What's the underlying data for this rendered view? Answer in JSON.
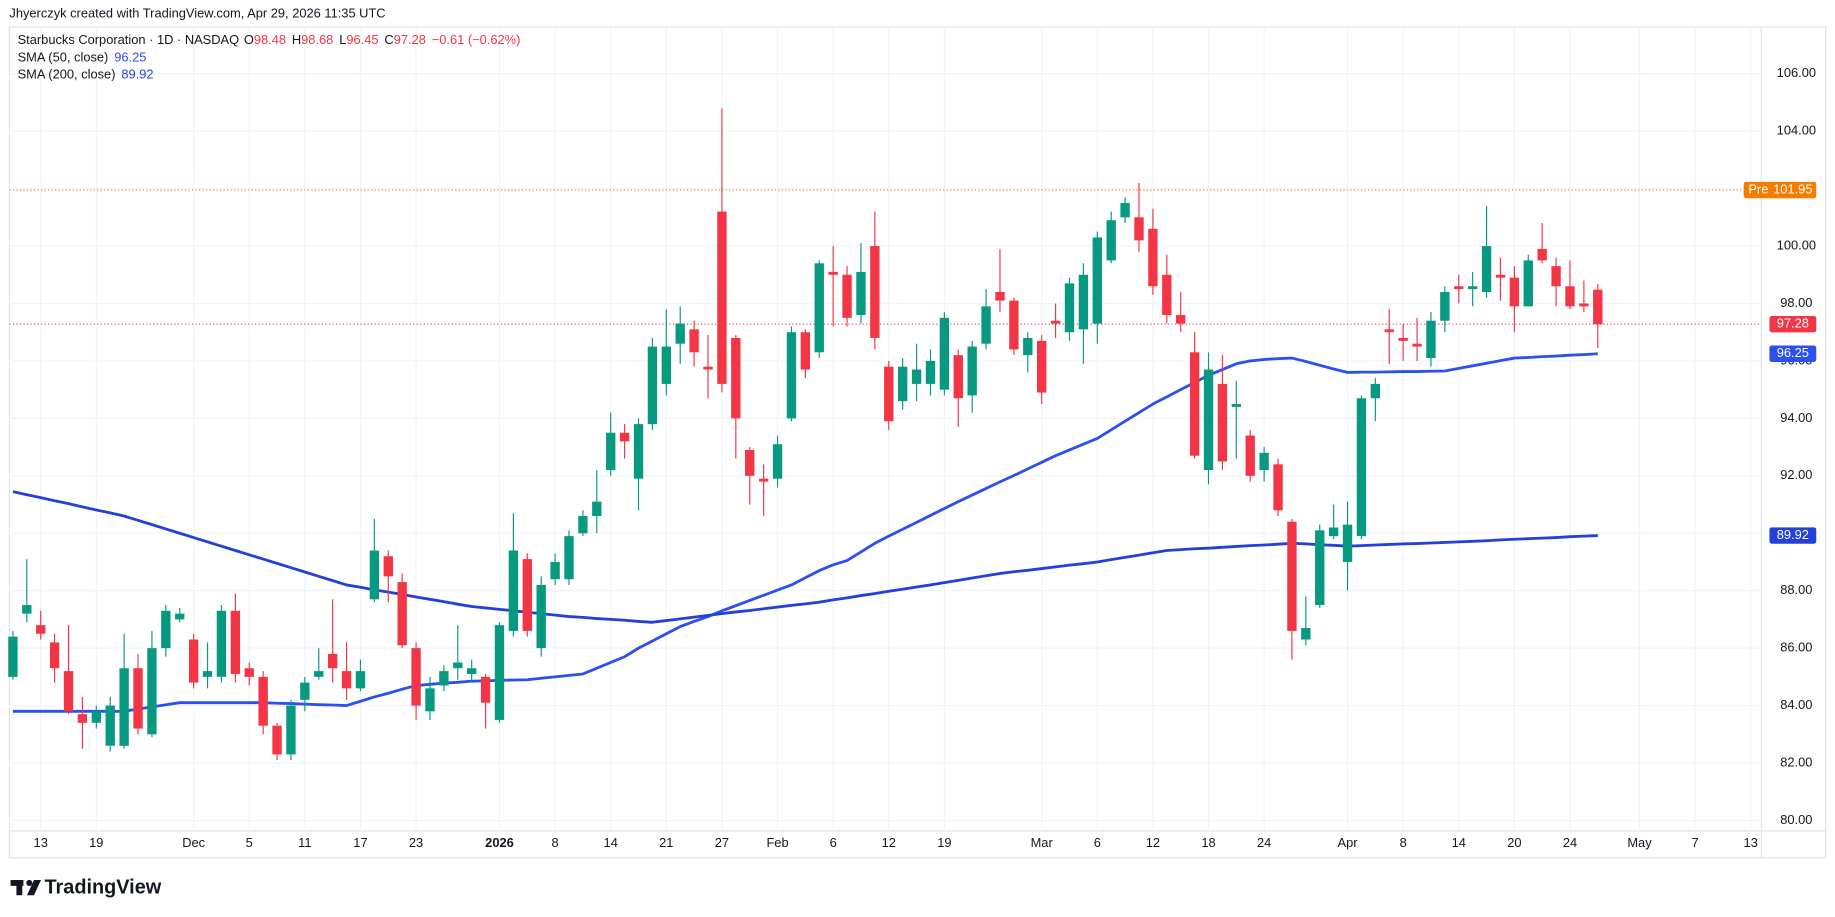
{
  "credit": "Jhyerczyk created with TradingView.com, Apr 29, 2026 11:35 UTC",
  "logo": "TradingView",
  "chart_data": {
    "type": "candlestick",
    "title": "Starbucks Corporation · 1D · NASDAQ",
    "ohlc_labels": [
      "O",
      "H",
      "L",
      "C"
    ],
    "change": "−0.61 (−0.62%)",
    "up_color": "#089981",
    "down_color": "#f23645",
    "categories": [
      null,
      null,
      "13",
      null,
      null,
      null,
      "19",
      null,
      null,
      null,
      null,
      null,
      null,
      "Dec",
      null,
      null,
      null,
      "5",
      null,
      null,
      null,
      "11",
      null,
      null,
      null,
      "17",
      null,
      null,
      null,
      "23",
      null,
      null,
      null,
      null,
      null,
      "2026",
      null,
      null,
      null,
      "8",
      null,
      null,
      null,
      "14",
      null,
      null,
      null,
      "21",
      null,
      null,
      null,
      "27",
      null,
      null,
      null,
      "Feb",
      null,
      null,
      null,
      "6",
      null,
      null,
      null,
      "12",
      null,
      null,
      null,
      "19",
      null,
      null,
      null,
      null,
      null,
      null,
      "Mar",
      null,
      null,
      null,
      "6",
      null,
      null,
      null,
      "12",
      null,
      null,
      null,
      "18",
      null,
      null,
      null,
      "24",
      null,
      null,
      null,
      null,
      null,
      "Apr",
      null,
      null,
      null,
      "8",
      null,
      null,
      null,
      "14",
      null,
      null,
      null,
      "20",
      null,
      null,
      null,
      "24",
      null,
      null,
      null,
      null,
      "May",
      null,
      null,
      null,
      "7",
      null,
      null,
      null,
      "13"
    ],
    "open": [
      85.0,
      87.2,
      86.8,
      86.2,
      85.2,
      83.7,
      83.4,
      82.6,
      82.6,
      85.3,
      83.0,
      86.0,
      87.0,
      86.3,
      85.0,
      85.0,
      87.3,
      85.3,
      85.0,
      83.3,
      82.3,
      84.2,
      85.0,
      85.8,
      85.2,
      84.6,
      87.7,
      89.2,
      88.3,
      86.0,
      83.8,
      84.7,
      85.3,
      85.1,
      85.0,
      83.5,
      86.6,
      89.1,
      86.0,
      88.4,
      88.4,
      90.0,
      90.6,
      92.2,
      93.5,
      91.9,
      93.8,
      95.2,
      96.6,
      97.1,
      95.8,
      101.2,
      96.8,
      92.9,
      91.9,
      91.9,
      94.0,
      97.0,
      96.3,
      99.1,
      99.0,
      97.6,
      100.0,
      95.8,
      94.6,
      95.2,
      95.2,
      95.0,
      96.2,
      94.8,
      96.6,
      98.4,
      98.1,
      96.2,
      96.7,
      97.4,
      97.0,
      97.1,
      97.3,
      99.5,
      101.0,
      101.0,
      100.6,
      99.0,
      97.6,
      96.3,
      92.2,
      95.2,
      94.4,
      93.4,
      92.2,
      92.4,
      90.4,
      86.3,
      87.5,
      89.9,
      89.0,
      89.9,
      94.7,
      97.1,
      96.8,
      96.6,
      96.1,
      97.4,
      98.6,
      98.5,
      98.4,
      99.0,
      98.9,
      97.9,
      99.9,
      99.3,
      98.6,
      98.0,
      98.48,
      null,
      null,
      null,
      null,
      null,
      null,
      null,
      null,
      null,
      null,
      null
    ],
    "high": [
      86.6,
      89.1,
      87.3,
      86.5,
      86.8,
      84.3,
      84.0,
      84.3,
      86.5,
      85.8,
      86.6,
      87.5,
      87.4,
      86.5,
      86.2,
      87.5,
      87.9,
      85.5,
      85.2,
      83.4,
      84.2,
      85.0,
      86.0,
      87.7,
      86.2,
      85.6,
      90.5,
      89.4,
      88.6,
      86.2,
      85.0,
      85.4,
      86.8,
      85.6,
      85.1,
      86.9,
      90.7,
      89.3,
      88.5,
      89.3,
      90.1,
      90.8,
      92.2,
      94.2,
      93.8,
      94.0,
      96.8,
      97.8,
      97.9,
      97.4,
      96.9,
      104.8,
      96.9,
      93.0,
      92.4,
      93.4,
      97.2,
      97.1,
      99.5,
      100.0,
      99.3,
      100.1,
      101.2,
      96.0,
      96.1,
      96.6,
      96.4,
      97.7,
      96.4,
      96.7,
      98.5,
      99.9,
      98.2,
      97.0,
      96.9,
      98.0,
      98.9,
      99.4,
      100.5,
      101.2,
      101.7,
      102.2,
      101.3,
      99.7,
      98.4,
      97.0,
      96.3,
      96.2,
      95.3,
      93.6,
      93.0,
      92.6,
      90.5,
      87.8,
      90.3,
      91.0,
      91.1,
      94.8,
      95.4,
      97.8,
      97.3,
      97.5,
      97.7,
      98.6,
      99.0,
      99.1,
      101.4,
      99.6,
      99.3,
      99.7,
      100.8,
      99.6,
      99.5,
      98.8,
      98.68,
      null,
      null,
      null,
      null,
      null,
      null,
      null,
      null,
      null,
      null,
      null
    ],
    "low": [
      84.9,
      86.9,
      86.3,
      84.8,
      83.7,
      82.5,
      83.2,
      82.4,
      82.5,
      83.0,
      82.9,
      85.7,
      86.9,
      84.6,
      84.6,
      84.8,
      84.8,
      84.7,
      83.0,
      82.1,
      82.1,
      83.8,
      84.9,
      84.8,
      84.2,
      84.5,
      87.6,
      87.6,
      86.0,
      83.5,
      83.5,
      84.5,
      84.9,
      84.8,
      83.2,
      83.4,
      86.4,
      86.4,
      85.7,
      88.2,
      88.2,
      89.9,
      90.0,
      92.0,
      92.6,
      90.8,
      93.6,
      94.8,
      95.9,
      95.8,
      94.7,
      94.9,
      92.6,
      91.0,
      90.6,
      91.6,
      93.9,
      95.4,
      96.1,
      97.2,
      97.2,
      97.3,
      96.4,
      93.6,
      94.3,
      94.6,
      94.8,
      94.8,
      93.7,
      94.2,
      96.4,
      97.7,
      96.2,
      95.6,
      94.5,
      96.8,
      96.7,
      95.9,
      96.6,
      99.4,
      100.8,
      99.8,
      98.3,
      97.3,
      97.0,
      92.6,
      91.7,
      92.2,
      92.6,
      91.8,
      91.8,
      90.6,
      85.6,
      86.1,
      87.4,
      89.8,
      88.0,
      89.8,
      93.9,
      95.9,
      96.0,
      96.0,
      95.8,
      97.0,
      98.0,
      97.9,
      98.2,
      98.1,
      97.0,
      97.9,
      99.4,
      97.9,
      97.8,
      97.7,
      96.45,
      null,
      null,
      null,
      null,
      null,
      null,
      null,
      null,
      null,
      null,
      null
    ],
    "close": [
      86.4,
      87.5,
      86.5,
      85.3,
      83.8,
      83.4,
      83.8,
      84.0,
      85.3,
      83.2,
      86.0,
      87.3,
      87.2,
      84.8,
      85.2,
      87.3,
      85.1,
      85.0,
      83.3,
      82.3,
      84.0,
      84.8,
      85.2,
      85.3,
      84.6,
      85.2,
      89.4,
      88.5,
      86.1,
      84.0,
      84.6,
      85.2,
      85.5,
      85.3,
      84.1,
      86.8,
      89.4,
      86.6,
      88.2,
      89.0,
      89.9,
      90.6,
      91.1,
      93.5,
      93.2,
      93.8,
      96.5,
      96.5,
      97.3,
      96.3,
      95.7,
      95.2,
      94.0,
      92.0,
      91.8,
      93.1,
      97.0,
      95.7,
      99.4,
      99.0,
      97.5,
      99.1,
      96.8,
      93.9,
      95.8,
      95.7,
      96.0,
      97.5,
      94.7,
      96.5,
      97.9,
      98.1,
      96.4,
      96.8,
      94.9,
      97.3,
      98.7,
      99.0,
      100.3,
      100.9,
      101.5,
      100.2,
      98.6,
      97.6,
      97.3,
      92.7,
      95.7,
      92.5,
      94.5,
      92.0,
      92.8,
      90.8,
      86.6,
      86.7,
      90.1,
      90.2,
      90.3,
      94.7,
      95.2,
      97.0,
      96.7,
      96.5,
      97.4,
      98.4,
      98.5,
      98.6,
      100.0,
      98.9,
      97.9,
      99.5,
      99.5,
      98.6,
      97.9,
      97.9,
      97.28,
      null,
      null,
      null,
      null,
      null,
      null,
      null,
      null,
      null,
      null,
      null
    ],
    "series": [
      {
        "name": "SMA (50, close)",
        "color": "#2b4ff0",
        "values": [
          83.8,
          83.8,
          83.8,
          83.8,
          83.8,
          83.8,
          83.8,
          83.8,
          83.8,
          83.88,
          83.95,
          84.03,
          84.1,
          84.1,
          84.1,
          84.1,
          84.1,
          84.1,
          84.1,
          84.08,
          84.07,
          84.05,
          84.03,
          84.02,
          84.0,
          84.15,
          84.3,
          84.43,
          84.57,
          84.7,
          84.74,
          84.78,
          84.81,
          84.85,
          84.86,
          84.88,
          84.89,
          84.9,
          84.95,
          85.0,
          85.05,
          85.1,
          85.3,
          85.5,
          85.7,
          86.0,
          86.25,
          86.5,
          86.75,
          86.93,
          87.1,
          87.3,
          87.48,
          87.66,
          87.84,
          88.02,
          88.2,
          88.45,
          88.7,
          88.9,
          89.05,
          89.35,
          89.65,
          89.9,
          90.14,
          90.38,
          90.62,
          90.86,
          91.1,
          91.33,
          91.56,
          91.79,
          92.01,
          92.24,
          92.47,
          92.7,
          92.9,
          93.1,
          93.3,
          93.6,
          93.9,
          94.2,
          94.5,
          94.75,
          95.0,
          95.25,
          95.5,
          95.7,
          95.9,
          96.0,
          96.05,
          96.08,
          96.1,
          95.98,
          95.85,
          95.72,
          95.6,
          95.61,
          95.61,
          95.62,
          95.63,
          95.63,
          95.64,
          95.65,
          95.74,
          95.83,
          95.92,
          96.01,
          96.1,
          96.12,
          96.15,
          96.17,
          96.2,
          96.22,
          96.25,
          null,
          null,
          null,
          null,
          null,
          null,
          null,
          null,
          null,
          null,
          null
        ]
      },
      {
        "name": "SMA (200, close)",
        "color": "#2440d8",
        "values": [
          91.45,
          91.34,
          91.24,
          91.13,
          91.03,
          90.92,
          90.81,
          90.71,
          90.6,
          90.45,
          90.3,
          90.15,
          90.0,
          89.85,
          89.7,
          89.55,
          89.4,
          89.25,
          89.1,
          88.95,
          88.8,
          88.65,
          88.5,
          88.35,
          88.2,
          88.12,
          88.03,
          87.95,
          87.87,
          87.78,
          87.7,
          87.62,
          87.53,
          87.45,
          87.4,
          87.35,
          87.3,
          87.25,
          87.2,
          87.15,
          87.1,
          87.07,
          87.03,
          87.0,
          86.97,
          86.93,
          86.9,
          86.96,
          87.02,
          87.08,
          87.14,
          87.2,
          87.26,
          87.31,
          87.37,
          87.43,
          87.49,
          87.54,
          87.6,
          87.68,
          87.75,
          87.83,
          87.9,
          87.98,
          88.05,
          88.13,
          88.2,
          88.28,
          88.36,
          88.44,
          88.52,
          88.6,
          88.66,
          88.71,
          88.77,
          88.83,
          88.89,
          88.94,
          89.0,
          89.08,
          89.16,
          89.24,
          89.32,
          89.4,
          89.43,
          89.46,
          89.48,
          89.51,
          89.54,
          89.57,
          89.59,
          89.62,
          89.65,
          89.63,
          89.6,
          89.58,
          89.55,
          89.57,
          89.59,
          89.61,
          89.63,
          89.64,
          89.66,
          89.68,
          89.7,
          89.72,
          89.74,
          89.77,
          89.79,
          89.81,
          89.83,
          89.85,
          89.88,
          89.9,
          89.92,
          null,
          null,
          null,
          null,
          null,
          null,
          null,
          null,
          null,
          null,
          null
        ]
      }
    ],
    "premarket": {
      "label": "Pre",
      "value": 101.95,
      "color": "#f57c00"
    },
    "ylim": [
      78.7,
      107.63
    ],
    "yticks": [
      {
        "value": 80,
        "label": "80.00"
      },
      {
        "value": 82,
        "label": "82.00"
      },
      {
        "value": 84,
        "label": "84.00"
      },
      {
        "value": 86,
        "label": "86.00"
      },
      {
        "value": 88,
        "label": "88.00"
      },
      {
        "value": 90,
        "label": "90.00"
      },
      {
        "value": 92,
        "label": "92.00"
      },
      {
        "value": 94,
        "label": "94.00"
      },
      {
        "value": 96,
        "label": "96.00"
      },
      {
        "value": 98,
        "label": "98.00"
      },
      {
        "value": 100,
        "label": "100.00"
      },
      {
        "value": 102,
        "label": "102.00"
      },
      {
        "value": 104,
        "label": "104.00"
      },
      {
        "value": 106,
        "label": "106.00"
      }
    ],
    "grid": true
  }
}
